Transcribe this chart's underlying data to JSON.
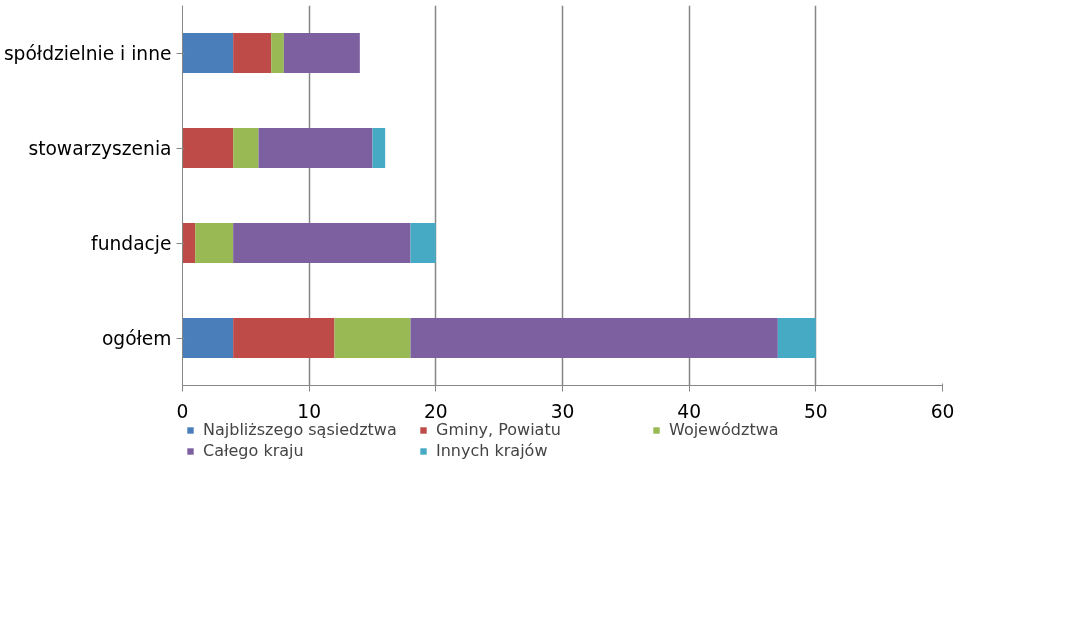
{
  "chart_data": {
    "type": "bar",
    "orientation": "horizontal",
    "stacked": true,
    "categories": [
      "spółdzielnie i inne",
      "stowarzyszenia",
      "fundacje",
      "ogółem"
    ],
    "series": [
      {
        "name": "Najbliższego sąsiedztwa",
        "color": "#4a7ebb",
        "values": [
          4,
          0,
          0,
          4
        ]
      },
      {
        "name": "Gminy, Powiatu",
        "color": "#be4b48",
        "values": [
          3,
          4,
          1,
          8
        ]
      },
      {
        "name": "Województwa",
        "color": "#98b954",
        "values": [
          1,
          2,
          3,
          6
        ]
      },
      {
        "name": "Całego kraju",
        "color": "#7d60a0",
        "values": [
          6,
          9,
          14,
          29
        ]
      },
      {
        "name": "Innych krajów",
        "color": "#46aac5",
        "values": [
          0,
          1,
          2,
          3
        ]
      }
    ],
    "xlim": [
      0,
      60
    ],
    "xticks": [
      0,
      10,
      20,
      30,
      40,
      50,
      60
    ],
    "grid": "x",
    "legend": "bottom"
  }
}
